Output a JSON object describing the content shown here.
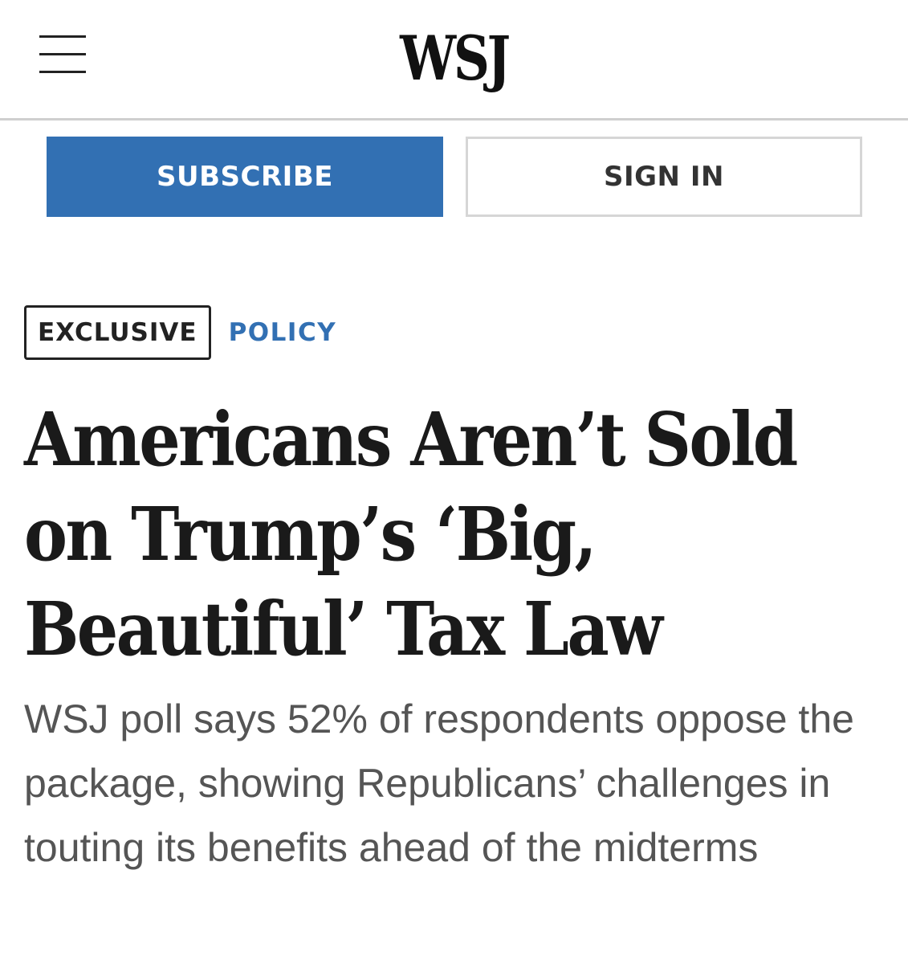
{
  "header": {
    "logo": "WSJ",
    "menu_icon": "hamburger-menu-icon"
  },
  "auth": {
    "subscribe_label": "SUBSCRIBE",
    "signin_label": "SIGN IN"
  },
  "article": {
    "tags": {
      "exclusive": "EXCLUSIVE",
      "section": "POLICY"
    },
    "headline": "Americans Aren’t Sold on Trump’s ‘Big, Beautiful’ Tax Law",
    "dek": "WSJ poll says 52% of respondents oppose the package, showing Republicans’ challenges in touting its benefits ahead of the midterms"
  },
  "colors": {
    "accent_blue": "#3270b3",
    "text_dark": "#1a1a1a",
    "text_gray": "#555555",
    "divider": "#cfcfcf"
  }
}
